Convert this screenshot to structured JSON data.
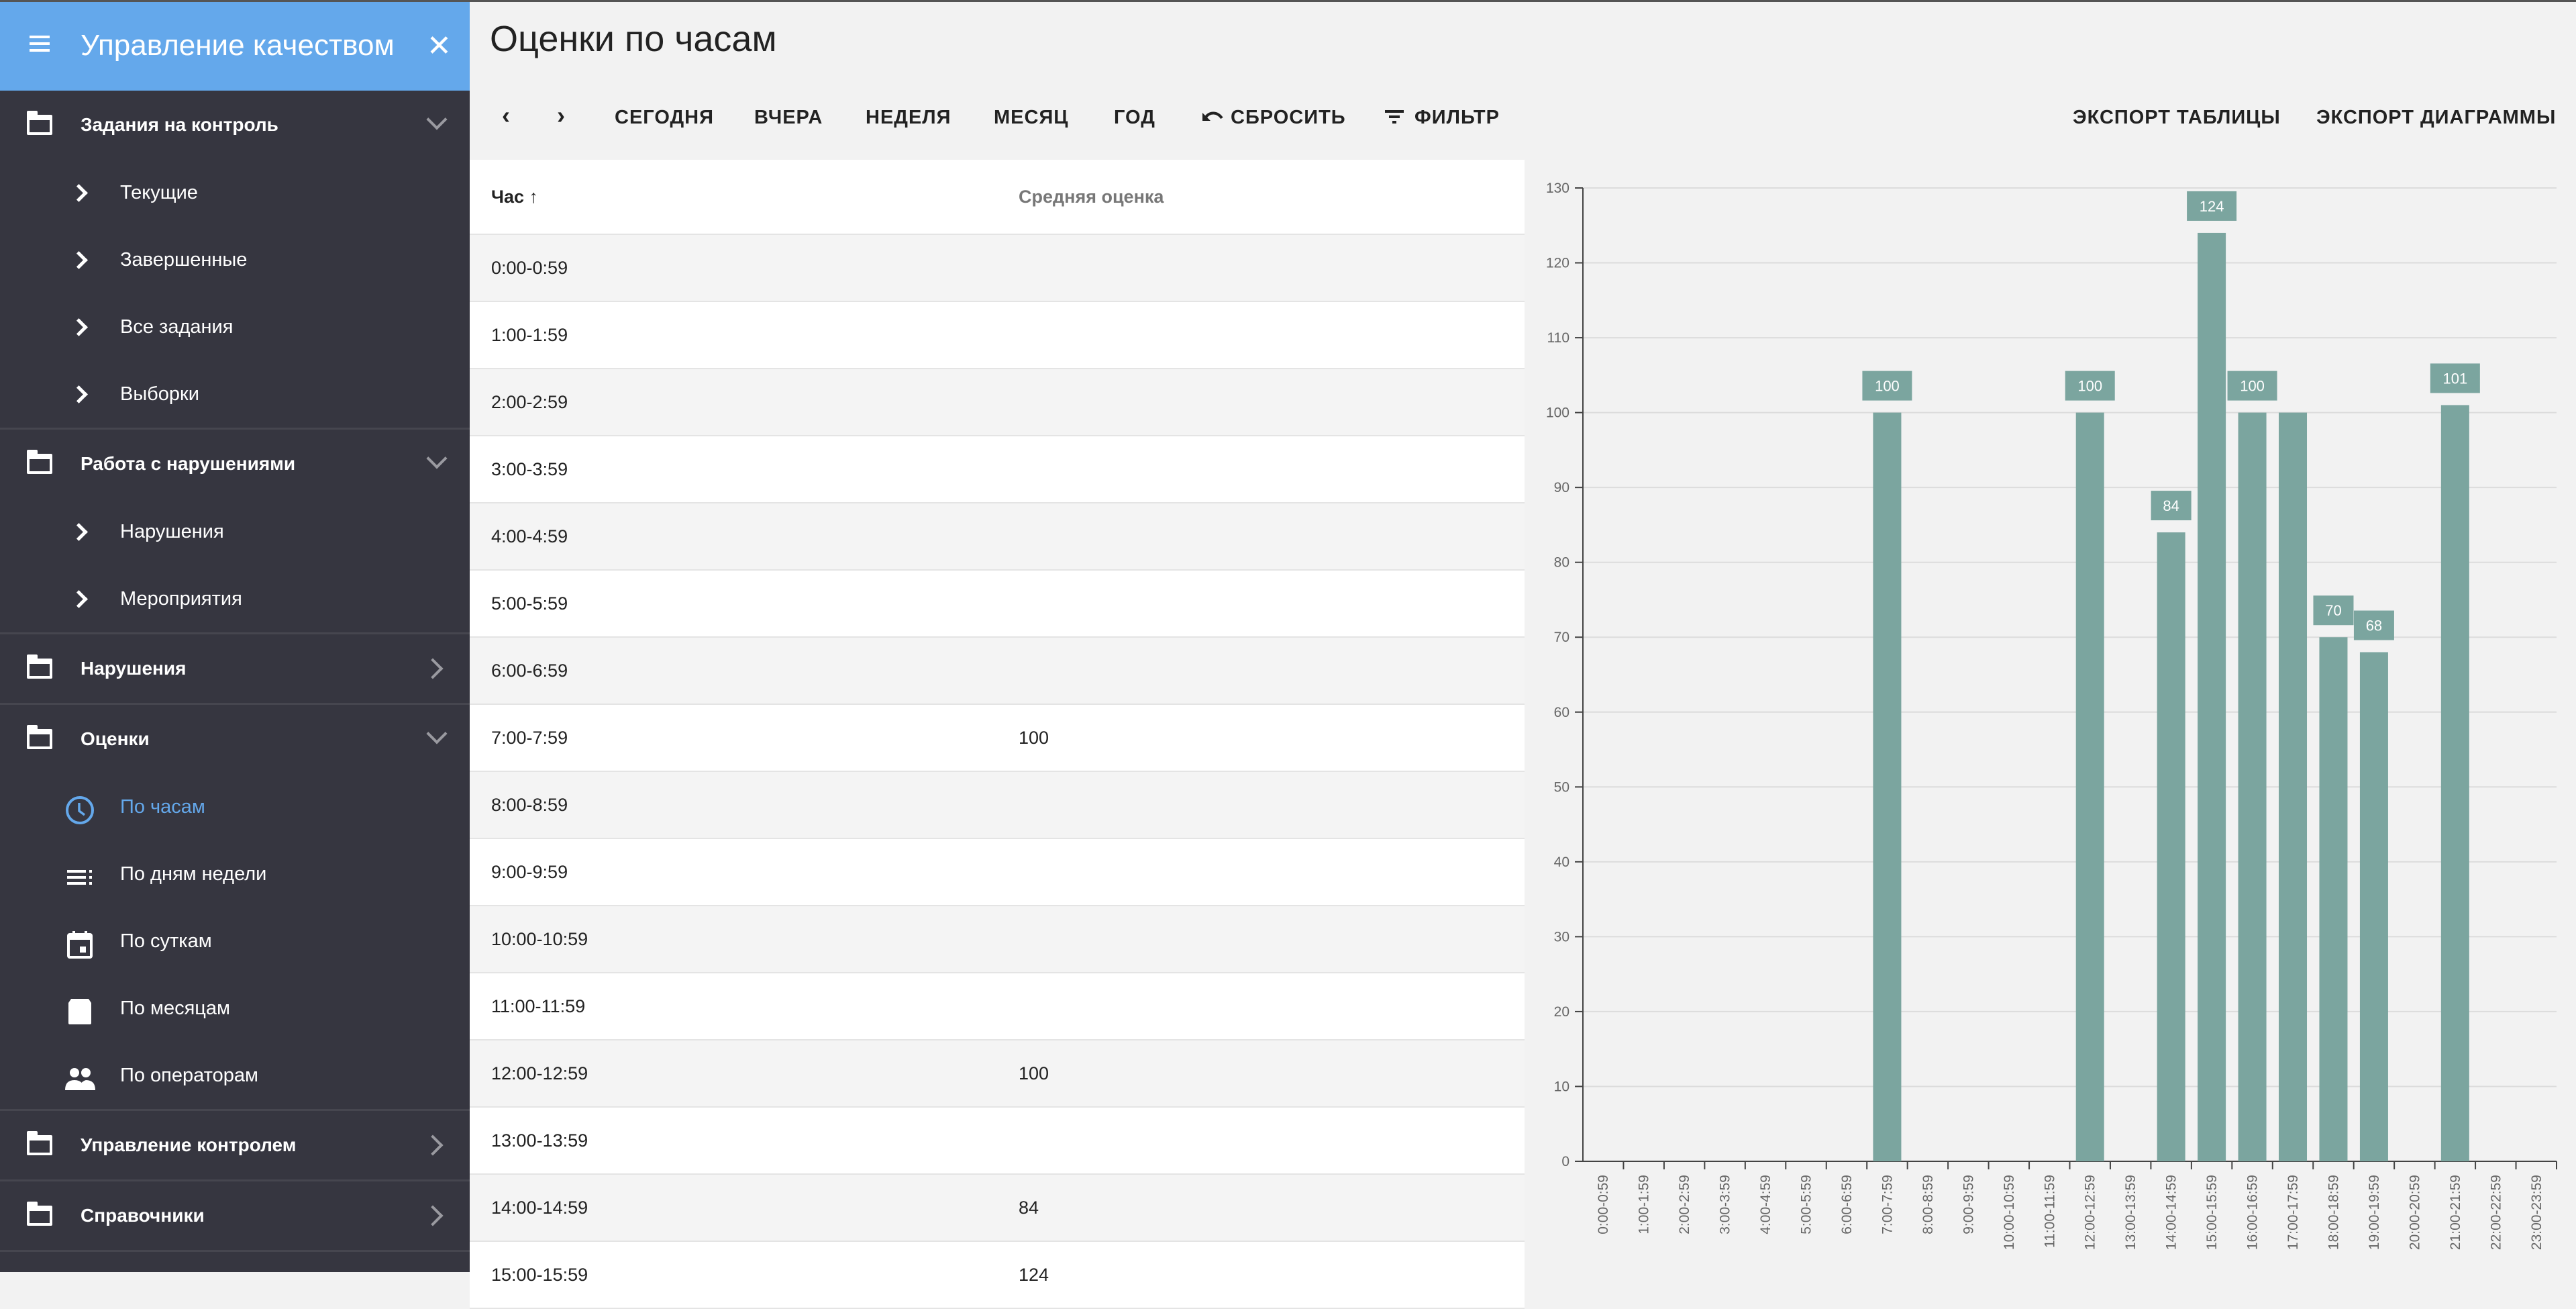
{
  "sidebar": {
    "title": "Управление качеством",
    "groups": [
      {
        "label": "Задания на контроль",
        "expanded": true,
        "items": [
          {
            "label": "Текущие"
          },
          {
            "label": "Завершенные"
          },
          {
            "label": "Все задания"
          },
          {
            "label": "Выборки"
          }
        ]
      },
      {
        "label": "Работа с нарушениями",
        "expanded": true,
        "items": [
          {
            "label": "Нарушения"
          },
          {
            "label": "Мероприятия"
          }
        ]
      },
      {
        "label": "Нарушения",
        "expanded": false,
        "items": []
      },
      {
        "label": "Оценки",
        "expanded": true,
        "items": [
          {
            "label": "По часам",
            "icon": "clock-icon",
            "active": true
          },
          {
            "label": "По дням недели",
            "icon": "list-icon"
          },
          {
            "label": "По суткам",
            "icon": "calendar-day-icon"
          },
          {
            "label": "По месяцам",
            "icon": "calendar-month-icon"
          },
          {
            "label": "По операторам",
            "icon": "people-icon"
          }
        ]
      },
      {
        "label": "Управление контролем",
        "expanded": false,
        "items": []
      },
      {
        "label": "Справочники",
        "expanded": false,
        "items": []
      }
    ]
  },
  "page": {
    "title": "Оценки по часам"
  },
  "toolbar": {
    "prev": "‹",
    "next": "›",
    "today": "СЕГОДНЯ",
    "yesterday": "ВЧЕРА",
    "week": "НЕДЕЛЯ",
    "month": "МЕСЯЦ",
    "year": "ГОД",
    "reset": "СБРОСИТЬ",
    "filter": "ФИЛЬТР",
    "export_table": "ЭКСПОРТ ТАБЛИЦЫ",
    "export_chart": "ЭКСПОРТ ДИАГРАММЫ"
  },
  "table": {
    "headers": [
      "Час ↑",
      "Средняя оценка"
    ],
    "rows": [
      [
        "0:00-0:59",
        ""
      ],
      [
        "1:00-1:59",
        ""
      ],
      [
        "2:00-2:59",
        ""
      ],
      [
        "3:00-3:59",
        ""
      ],
      [
        "4:00-4:59",
        ""
      ],
      [
        "5:00-5:59",
        ""
      ],
      [
        "6:00-6:59",
        ""
      ],
      [
        "7:00-7:59",
        "100"
      ],
      [
        "8:00-8:59",
        ""
      ],
      [
        "9:00-9:59",
        ""
      ],
      [
        "10:00-10:59",
        ""
      ],
      [
        "11:00-11:59",
        ""
      ],
      [
        "12:00-12:59",
        "100"
      ],
      [
        "13:00-13:59",
        ""
      ],
      [
        "14:00-14:59",
        "84"
      ],
      [
        "15:00-15:59",
        "124"
      ]
    ]
  },
  "chart_data": {
    "type": "bar",
    "categories": [
      "0:00-0:59",
      "1:00-1:59",
      "2:00-2:59",
      "3:00-3:59",
      "4:00-4:59",
      "5:00-5:59",
      "6:00-6:59",
      "7:00-7:59",
      "8:00-8:59",
      "9:00-9:59",
      "10:00-10:59",
      "11:00-11:59",
      "12:00-12:59",
      "13:00-13:59",
      "14:00-14:59",
      "15:00-15:59",
      "16:00-16:59",
      "17:00-17:59",
      "18:00-18:59",
      "19:00-19:59",
      "20:00-20:59",
      "21:00-21:59",
      "22:00-22:59",
      "23:00-23:59"
    ],
    "values": [
      null,
      null,
      null,
      null,
      null,
      null,
      null,
      100,
      null,
      null,
      null,
      null,
      100,
      null,
      84,
      124,
      100,
      100,
      70,
      68,
      null,
      101,
      null,
      null
    ],
    "data_labels": [
      null,
      null,
      null,
      null,
      null,
      null,
      null,
      "100",
      null,
      null,
      null,
      null,
      "100",
      null,
      "84",
      "124",
      "100",
      null,
      "70",
      "68",
      null,
      "101",
      null,
      null
    ],
    "ylim": [
      0,
      130
    ],
    "yticks": [
      0,
      10,
      20,
      30,
      40,
      50,
      60,
      70,
      80,
      90,
      100,
      110,
      120,
      130
    ],
    "grid": true,
    "bar_color": "#7ba59f"
  }
}
